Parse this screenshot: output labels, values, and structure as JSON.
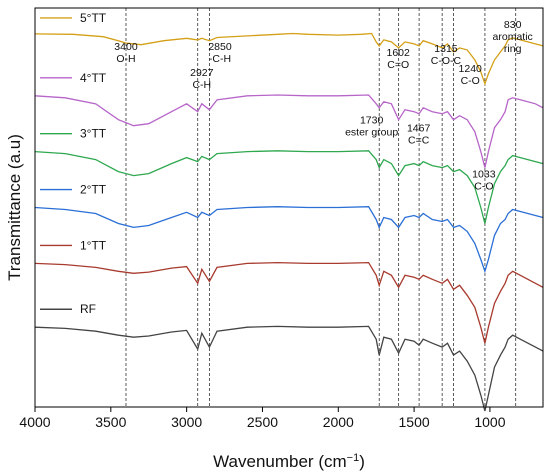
{
  "chart_data": {
    "type": "line",
    "xlabel": "Wavenumber (cm",
    "xlabel_sup": "−1",
    "xlabel_end": ")",
    "ylabel": "Transmittance (a.u)",
    "xlim": [
      4000,
      650
    ],
    "x_ticks": [
      4000,
      3500,
      3000,
      2500,
      2000,
      1500,
      1000
    ],
    "x_reversed": true,
    "y_tick_labels": false,
    "series": [
      {
        "name": "5°TT",
        "color": "#d4a017",
        "baseline": 0.93,
        "points": [
          [
            4000,
            0.005
          ],
          [
            3750,
            0.004
          ],
          [
            3550,
            -0.002
          ],
          [
            3450,
            -0.012
          ],
          [
            3400,
            -0.018
          ],
          [
            3300,
            -0.022
          ],
          [
            3150,
            -0.012
          ],
          [
            3000,
            -0.006
          ],
          [
            2927,
            -0.01
          ],
          [
            2900,
            -0.006
          ],
          [
            2850,
            -0.012
          ],
          [
            2800,
            -0.004
          ],
          [
            2600,
            0.0
          ],
          [
            2400,
            0.004
          ],
          [
            2300,
            0.006
          ],
          [
            2200,
            0.004
          ],
          [
            2000,
            0.002
          ],
          [
            1850,
            0.004
          ],
          [
            1780,
            0.006
          ],
          [
            1750,
            -0.015
          ],
          [
            1730,
            -0.025
          ],
          [
            1700,
            -0.01
          ],
          [
            1650,
            -0.015
          ],
          [
            1602,
            -0.03
          ],
          [
            1560,
            -0.015
          ],
          [
            1500,
            -0.02
          ],
          [
            1467,
            -0.025
          ],
          [
            1440,
            -0.012
          ],
          [
            1380,
            -0.02
          ],
          [
            1315,
            -0.03
          ],
          [
            1280,
            -0.02
          ],
          [
            1240,
            -0.04
          ],
          [
            1200,
            -0.03
          ],
          [
            1150,
            -0.035
          ],
          [
            1100,
            -0.06
          ],
          [
            1060,
            -0.09
          ],
          [
            1033,
            -0.12
          ],
          [
            1010,
            -0.095
          ],
          [
            970,
            -0.06
          ],
          [
            930,
            -0.04
          ],
          [
            900,
            -0.025
          ],
          [
            880,
            -0.01
          ],
          [
            850,
            -0.005
          ],
          [
            800,
            -0.01
          ],
          [
            700,
            -0.02
          ],
          [
            650,
            -0.025
          ]
        ]
      },
      {
        "name": "4°TT",
        "color": "#b765c9",
        "baseline": 0.78,
        "points": [
          [
            4000,
            0.0
          ],
          [
            3800,
            -0.005
          ],
          [
            3600,
            -0.02
          ],
          [
            3450,
            -0.06
          ],
          [
            3350,
            -0.075
          ],
          [
            3250,
            -0.07
          ],
          [
            3100,
            -0.04
          ],
          [
            3000,
            -0.02
          ],
          [
            2927,
            -0.04
          ],
          [
            2900,
            -0.02
          ],
          [
            2850,
            -0.035
          ],
          [
            2800,
            -0.01
          ],
          [
            2600,
            0.0
          ],
          [
            2400,
            0.002
          ],
          [
            2200,
            0.0
          ],
          [
            2000,
            0.0
          ],
          [
            1800,
            0.002
          ],
          [
            1750,
            -0.02
          ],
          [
            1730,
            -0.03
          ],
          [
            1700,
            -0.015
          ],
          [
            1650,
            -0.02
          ],
          [
            1602,
            -0.06
          ],
          [
            1560,
            -0.035
          ],
          [
            1500,
            -0.04
          ],
          [
            1467,
            -0.045
          ],
          [
            1440,
            -0.03
          ],
          [
            1380,
            -0.04
          ],
          [
            1315,
            -0.045
          ],
          [
            1280,
            -0.04
          ],
          [
            1240,
            -0.06
          ],
          [
            1200,
            -0.05
          ],
          [
            1150,
            -0.06
          ],
          [
            1100,
            -0.09
          ],
          [
            1060,
            -0.14
          ],
          [
            1033,
            -0.18
          ],
          [
            1010,
            -0.14
          ],
          [
            970,
            -0.08
          ],
          [
            930,
            -0.06
          ],
          [
            900,
            -0.04
          ],
          [
            880,
            -0.01
          ],
          [
            850,
            -0.005
          ],
          [
            800,
            -0.01
          ],
          [
            700,
            -0.02
          ],
          [
            650,
            -0.03
          ]
        ]
      },
      {
        "name": "3°TT",
        "color": "#2fa84f",
        "baseline": 0.64,
        "points": [
          [
            4000,
            0.0
          ],
          [
            3800,
            -0.005
          ],
          [
            3600,
            -0.02
          ],
          [
            3450,
            -0.05
          ],
          [
            3350,
            -0.06
          ],
          [
            3250,
            -0.055
          ],
          [
            3100,
            -0.03
          ],
          [
            3000,
            -0.015
          ],
          [
            2927,
            -0.025
          ],
          [
            2900,
            -0.012
          ],
          [
            2850,
            -0.02
          ],
          [
            2800,
            -0.005
          ],
          [
            2600,
            0.0
          ],
          [
            2400,
            0.002
          ],
          [
            2200,
            0.0
          ],
          [
            2000,
            0.0
          ],
          [
            1800,
            0.002
          ],
          [
            1750,
            -0.02
          ],
          [
            1730,
            -0.04
          ],
          [
            1700,
            -0.02
          ],
          [
            1650,
            -0.03
          ],
          [
            1602,
            -0.06
          ],
          [
            1560,
            -0.035
          ],
          [
            1500,
            -0.03
          ],
          [
            1467,
            -0.035
          ],
          [
            1440,
            -0.025
          ],
          [
            1380,
            -0.035
          ],
          [
            1315,
            -0.04
          ],
          [
            1280,
            -0.035
          ],
          [
            1240,
            -0.05
          ],
          [
            1200,
            -0.045
          ],
          [
            1150,
            -0.06
          ],
          [
            1100,
            -0.09
          ],
          [
            1060,
            -0.14
          ],
          [
            1033,
            -0.18
          ],
          [
            1010,
            -0.14
          ],
          [
            970,
            -0.08
          ],
          [
            930,
            -0.05
          ],
          [
            900,
            -0.035
          ],
          [
            880,
            -0.02
          ],
          [
            850,
            -0.01
          ],
          [
            800,
            -0.015
          ],
          [
            700,
            -0.025
          ],
          [
            650,
            -0.03
          ]
        ]
      },
      {
        "name": "2°TT",
        "color": "#2a6fd6",
        "baseline": 0.5,
        "points": [
          [
            4000,
            0.0
          ],
          [
            3800,
            -0.005
          ],
          [
            3600,
            -0.015
          ],
          [
            3450,
            -0.04
          ],
          [
            3350,
            -0.05
          ],
          [
            3250,
            -0.045
          ],
          [
            3100,
            -0.025
          ],
          [
            3000,
            -0.012
          ],
          [
            2927,
            -0.025
          ],
          [
            2900,
            -0.012
          ],
          [
            2850,
            -0.02
          ],
          [
            2800,
            -0.005
          ],
          [
            2600,
            0.0
          ],
          [
            2400,
            0.002
          ],
          [
            2200,
            0.0
          ],
          [
            2000,
            0.0
          ],
          [
            1800,
            0.002
          ],
          [
            1750,
            -0.03
          ],
          [
            1730,
            -0.05
          ],
          [
            1700,
            -0.025
          ],
          [
            1650,
            -0.03
          ],
          [
            1602,
            -0.05
          ],
          [
            1560,
            -0.025
          ],
          [
            1500,
            -0.02
          ],
          [
            1467,
            -0.025
          ],
          [
            1440,
            -0.015
          ],
          [
            1380,
            -0.03
          ],
          [
            1315,
            -0.035
          ],
          [
            1280,
            -0.03
          ],
          [
            1240,
            -0.05
          ],
          [
            1200,
            -0.045
          ],
          [
            1150,
            -0.06
          ],
          [
            1100,
            -0.09
          ],
          [
            1060,
            -0.13
          ],
          [
            1033,
            -0.16
          ],
          [
            1010,
            -0.13
          ],
          [
            970,
            -0.07
          ],
          [
            930,
            -0.04
          ],
          [
            900,
            -0.03
          ],
          [
            880,
            -0.015
          ],
          [
            850,
            -0.005
          ],
          [
            800,
            -0.01
          ],
          [
            700,
            -0.02
          ],
          [
            650,
            -0.025
          ]
        ]
      },
      {
        "name": "1°TT",
        "color": "#a83a2e",
        "baseline": 0.36,
        "points": [
          [
            4000,
            0.0
          ],
          [
            3800,
            -0.003
          ],
          [
            3600,
            -0.01
          ],
          [
            3450,
            -0.02
          ],
          [
            3350,
            -0.025
          ],
          [
            3250,
            -0.022
          ],
          [
            3100,
            -0.012
          ],
          [
            3000,
            -0.008
          ],
          [
            2927,
            -0.05
          ],
          [
            2900,
            -0.015
          ],
          [
            2850,
            -0.045
          ],
          [
            2800,
            -0.01
          ],
          [
            2600,
            0.0
          ],
          [
            2400,
            0.002
          ],
          [
            2200,
            0.0
          ],
          [
            2000,
            0.0
          ],
          [
            1800,
            0.002
          ],
          [
            1750,
            -0.03
          ],
          [
            1730,
            -0.055
          ],
          [
            1700,
            -0.02
          ],
          [
            1650,
            -0.03
          ],
          [
            1602,
            -0.06
          ],
          [
            1560,
            -0.03
          ],
          [
            1500,
            -0.035
          ],
          [
            1467,
            -0.04
          ],
          [
            1440,
            -0.03
          ],
          [
            1380,
            -0.04
          ],
          [
            1315,
            -0.05
          ],
          [
            1280,
            -0.04
          ],
          [
            1240,
            -0.065
          ],
          [
            1200,
            -0.055
          ],
          [
            1150,
            -0.08
          ],
          [
            1100,
            -0.11
          ],
          [
            1060,
            -0.16
          ],
          [
            1033,
            -0.2
          ],
          [
            1010,
            -0.16
          ],
          [
            970,
            -0.1
          ],
          [
            930,
            -0.07
          ],
          [
            900,
            -0.05
          ],
          [
            880,
            -0.03
          ],
          [
            850,
            -0.02
          ],
          [
            800,
            -0.03
          ],
          [
            700,
            -0.05
          ],
          [
            650,
            -0.06
          ]
        ]
      },
      {
        "name": "RF",
        "color": "#444444",
        "baseline": 0.2,
        "points": [
          [
            4000,
            0.0
          ],
          [
            3800,
            -0.003
          ],
          [
            3600,
            -0.01
          ],
          [
            3450,
            -0.02
          ],
          [
            3350,
            -0.025
          ],
          [
            3250,
            -0.022
          ],
          [
            3100,
            -0.012
          ],
          [
            3000,
            -0.008
          ],
          [
            2927,
            -0.055
          ],
          [
            2900,
            -0.015
          ],
          [
            2850,
            -0.05
          ],
          [
            2800,
            -0.01
          ],
          [
            2600,
            0.0
          ],
          [
            2400,
            0.002
          ],
          [
            2200,
            0.0
          ],
          [
            2000,
            0.0
          ],
          [
            1800,
            0.002
          ],
          [
            1750,
            -0.03
          ],
          [
            1730,
            -0.07
          ],
          [
            1700,
            -0.025
          ],
          [
            1650,
            -0.03
          ],
          [
            1602,
            -0.065
          ],
          [
            1560,
            -0.03
          ],
          [
            1500,
            -0.035
          ],
          [
            1467,
            -0.045
          ],
          [
            1440,
            -0.03
          ],
          [
            1380,
            -0.04
          ],
          [
            1315,
            -0.05
          ],
          [
            1280,
            -0.04
          ],
          [
            1240,
            -0.07
          ],
          [
            1200,
            -0.06
          ],
          [
            1150,
            -0.085
          ],
          [
            1100,
            -0.12
          ],
          [
            1060,
            -0.17
          ],
          [
            1033,
            -0.21
          ],
          [
            1010,
            -0.17
          ],
          [
            970,
            -0.1
          ],
          [
            930,
            -0.07
          ],
          [
            900,
            -0.05
          ],
          [
            880,
            -0.03
          ],
          [
            850,
            -0.02
          ],
          [
            800,
            -0.03
          ],
          [
            700,
            -0.05
          ],
          [
            650,
            -0.06
          ]
        ]
      }
    ],
    "reference_lines": [
      3400,
      2927,
      2850,
      1730,
      1602,
      1467,
      1315,
      1240,
      1033,
      830
    ],
    "annotations": [
      {
        "text": "3400",
        "x": 3400,
        "y": 0.895
      },
      {
        "text": "O-H",
        "x": 3400,
        "y": 0.865
      },
      {
        "text": "2927",
        "x": 2900,
        "y": 0.83
      },
      {
        "text": "C-H",
        "x": 2900,
        "y": 0.8
      },
      {
        "text": "2850",
        "x": 2780,
        "y": 0.895
      },
      {
        "text": "-C-H",
        "x": 2780,
        "y": 0.865
      },
      {
        "text": "1602",
        "x": 1605,
        "y": 0.88
      },
      {
        "text": "C=O",
        "x": 1605,
        "y": 0.85
      },
      {
        "text": "1315",
        "x": 1290,
        "y": 0.89
      },
      {
        "text": "C-O-C",
        "x": 1290,
        "y": 0.86
      },
      {
        "text": "1240",
        "x": 1130,
        "y": 0.84
      },
      {
        "text": "C-O",
        "x": 1130,
        "y": 0.81
      },
      {
        "text": "830",
        "x": 850,
        "y": 0.95
      },
      {
        "text": "aromatic",
        "x": 850,
        "y": 0.92
      },
      {
        "text": "ring",
        "x": 850,
        "y": 0.89
      },
      {
        "text": "1730",
        "x": 1780,
        "y": 0.71
      },
      {
        "text": "ester group",
        "x": 1780,
        "y": 0.68
      },
      {
        "text": "1467",
        "x": 1470,
        "y": 0.69
      },
      {
        "text": "C=C",
        "x": 1470,
        "y": 0.66
      },
      {
        "text": "1033",
        "x": 1040,
        "y": 0.575
      },
      {
        "text": "C-O",
        "x": 1040,
        "y": 0.545
      }
    ]
  }
}
